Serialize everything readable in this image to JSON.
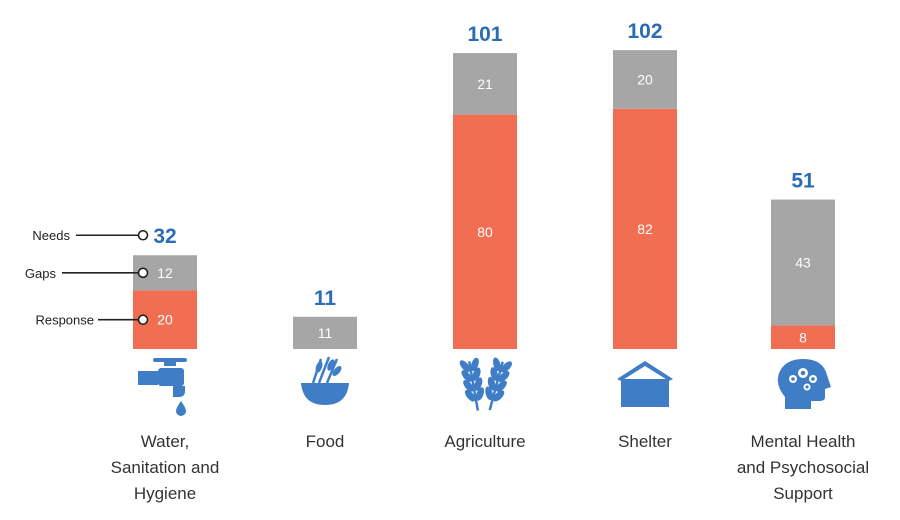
{
  "chart_data": {
    "type": "bar",
    "stacked": true,
    "categories": [
      [
        "Water,",
        "Sanitation and",
        "Hygiene"
      ],
      [
        "Food"
      ],
      [
        "Agriculture"
      ],
      [
        "Shelter"
      ],
      [
        "Mental Health",
        "and Psychosocial",
        "Support"
      ]
    ],
    "icons": [
      "water-tap-icon",
      "food-bowl-icon",
      "wheat-icon",
      "shelter-icon",
      "mental-health-icon"
    ],
    "series": [
      {
        "name": "Response",
        "color": "#f26e52",
        "values": [
          20,
          0,
          80,
          82,
          8
        ]
      },
      {
        "name": "Gaps",
        "color": "#a6a6a6",
        "values": [
          12,
          11,
          21,
          20,
          43
        ]
      }
    ],
    "totals": [
      32,
      11,
      101,
      102,
      51
    ],
    "legend": {
      "labels": [
        "Needs",
        "Gaps",
        "Response"
      ],
      "anchor_category": 0
    },
    "colors": {
      "total_label": "#2a6db5",
      "icon": "#3f7ec7"
    },
    "ylim": [
      0,
      102
    ]
  }
}
